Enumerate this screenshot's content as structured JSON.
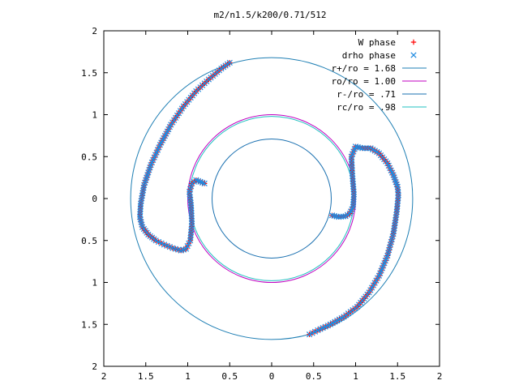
{
  "chart_data": {
    "type": "scatter",
    "title": "m2/n1.5/k200/0.71/512",
    "xlabel": "",
    "ylabel": "",
    "xlim": [
      -2,
      2
    ],
    "ylim": [
      -2,
      2
    ],
    "grid": false,
    "legend_position": "top-right",
    "xticks": [
      {
        "value": -2,
        "label": "2"
      },
      {
        "value": -1.5,
        "label": "1.5"
      },
      {
        "value": -1,
        "label": "1"
      },
      {
        "value": -0.5,
        "label": "0.5"
      },
      {
        "value": 0,
        "label": "0"
      },
      {
        "value": 0.5,
        "label": "0.5"
      },
      {
        "value": 1,
        "label": "1"
      },
      {
        "value": 1.5,
        "label": "1.5"
      },
      {
        "value": 2,
        "label": "2"
      }
    ],
    "yticks": [
      {
        "value": 2,
        "label": "2"
      },
      {
        "value": 1.5,
        "label": "1.5"
      },
      {
        "value": 1,
        "label": "1"
      },
      {
        "value": 0.5,
        "label": "0.5"
      },
      {
        "value": 0,
        "label": "0"
      },
      {
        "value": -0.5,
        "label": "0.5"
      },
      {
        "value": -1,
        "label": "1"
      },
      {
        "value": -1.5,
        "label": "1.5"
      },
      {
        "value": -2,
        "label": "2"
      }
    ],
    "circles": [
      {
        "name": "r+/ro = 1.68",
        "radius": 1.68,
        "color": "#1f7fb4"
      },
      {
        "name": "ro/ro = 1.00",
        "radius": 1.0,
        "color": "#c000c0"
      },
      {
        "name": "r-/ro = .71",
        "radius": 0.71,
        "color": "#1a70b0"
      },
      {
        "name": "rc/ro = .98",
        "radius": 0.98,
        "color": "#20c0c0"
      }
    ],
    "series": [
      {
        "name": "W phase",
        "marker": "plus",
        "color": "#ff0000",
        "arms": [
          {
            "x": [
              -0.5,
              -0.6,
              -0.75,
              -0.9,
              -1.05,
              -1.2,
              -1.33,
              -1.44,
              -1.52,
              -1.56,
              -1.57,
              -1.54,
              -1.47,
              -1.38,
              -1.28,
              -1.18,
              -1.08,
              -1.02,
              -0.97,
              -0.95,
              -0.96,
              -0.98,
              -0.95,
              -0.9,
              -0.85,
              -0.8
            ],
            "y": [
              1.62,
              1.55,
              1.42,
              1.28,
              1.1,
              0.88,
              0.64,
              0.4,
              0.16,
              -0.06,
              -0.22,
              -0.34,
              -0.43,
              -0.5,
              -0.55,
              -0.59,
              -0.62,
              -0.6,
              -0.5,
              -0.3,
              -0.08,
              0.08,
              0.18,
              0.22,
              0.2,
              0.18
            ]
          },
          {
            "x": [
              0.45,
              0.55,
              0.7,
              0.86,
              1.02,
              1.16,
              1.28,
              1.38,
              1.45,
              1.49,
              1.51,
              1.5,
              1.45,
              1.38,
              1.28,
              1.18,
              1.08,
              1.0,
              0.95,
              0.96,
              0.98,
              0.97,
              0.93,
              0.88,
              0.8,
              0.72
            ],
            "y": [
              -1.62,
              -1.57,
              -1.5,
              -1.41,
              -1.29,
              -1.12,
              -0.92,
              -0.68,
              -0.42,
              -0.16,
              0.04,
              0.14,
              0.28,
              0.42,
              0.54,
              0.6,
              0.6,
              0.62,
              0.5,
              0.3,
              0.05,
              -0.1,
              -0.18,
              -0.21,
              -0.22,
              -0.2
            ]
          }
        ]
      },
      {
        "name": "drho phase",
        "marker": "cross",
        "color": "#1f8ae0",
        "arms": [
          {
            "x": [
              -0.5,
              -0.6,
              -0.75,
              -0.9,
              -1.05,
              -1.2,
              -1.33,
              -1.44,
              -1.52,
              -1.56,
              -1.57,
              -1.54,
              -1.47,
              -1.38,
              -1.28,
              -1.18,
              -1.08,
              -1.02,
              -0.97,
              -0.95,
              -0.96,
              -0.98,
              -0.95,
              -0.9,
              -0.85,
              -0.8
            ],
            "y": [
              1.62,
              1.55,
              1.42,
              1.28,
              1.1,
              0.88,
              0.64,
              0.4,
              0.16,
              -0.06,
              -0.22,
              -0.34,
              -0.43,
              -0.5,
              -0.55,
              -0.59,
              -0.62,
              -0.6,
              -0.5,
              -0.3,
              -0.08,
              0.08,
              0.18,
              0.22,
              0.2,
              0.18
            ]
          },
          {
            "x": [
              0.45,
              0.55,
              0.7,
              0.86,
              1.02,
              1.16,
              1.28,
              1.38,
              1.45,
              1.49,
              1.51,
              1.5,
              1.45,
              1.38,
              1.28,
              1.18,
              1.08,
              1.0,
              0.95,
              0.96,
              0.98,
              0.97,
              0.93,
              0.88,
              0.8,
              0.72
            ],
            "y": [
              -1.62,
              -1.57,
              -1.5,
              -1.41,
              -1.29,
              -1.12,
              -0.92,
              -0.68,
              -0.42,
              -0.16,
              0.04,
              0.14,
              0.28,
              0.42,
              0.54,
              0.6,
              0.6,
              0.62,
              0.5,
              0.3,
              0.05,
              -0.1,
              -0.18,
              -0.21,
              -0.22,
              -0.2
            ]
          }
        ]
      }
    ]
  }
}
